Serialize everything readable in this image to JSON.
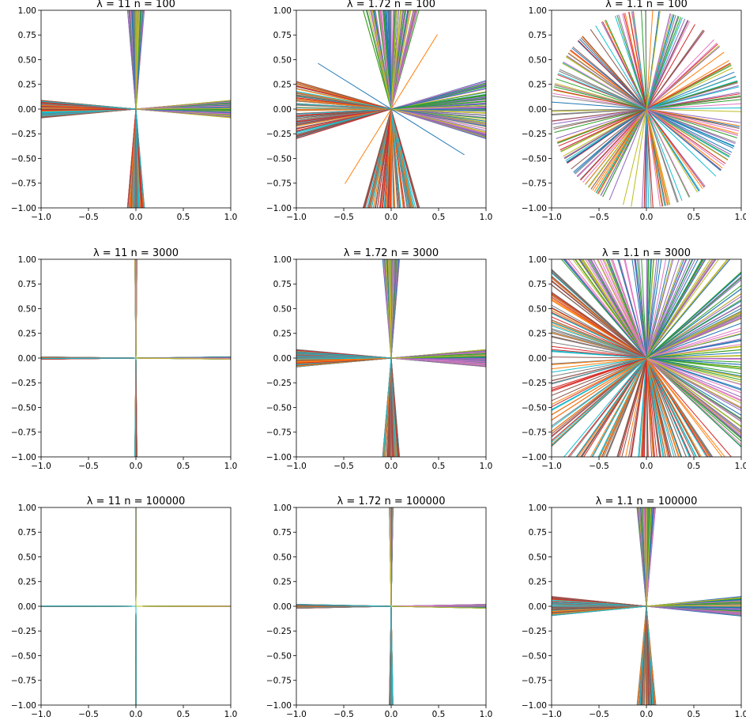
{
  "figure": {
    "color_cycle": [
      "#1f77b4",
      "#ff7f0e",
      "#2ca02c",
      "#d62728",
      "#9467bd",
      "#8c564b",
      "#e377c2",
      "#7f7f7f",
      "#bcbd22",
      "#17becf"
    ]
  },
  "chart_data": [
    {
      "type": "line",
      "title": "λ = 11   n = 100",
      "lambda": "11",
      "n": "100",
      "xlim": [
        -1.0,
        1.0
      ],
      "ylim": [
        -1.0,
        1.0
      ],
      "xticks": [
        "-1.0",
        "-0.5",
        "0.0",
        "0.5",
        "1.0"
      ],
      "yticks": [
        "1.00",
        "0.75",
        "0.50",
        "0.25",
        "0.00",
        "-0.25",
        "-0.50",
        "-0.75",
        "-1.00"
      ],
      "rays": [
        {
          "direction": "vertical",
          "count": 100,
          "max_tilt": 0.09
        },
        {
          "direction": "horizontal",
          "count": 100,
          "max_tilt": 0.09
        }
      ],
      "grid": false
    },
    {
      "type": "line",
      "title": "λ = 1.72   n = 100",
      "lambda": "1.72",
      "n": "100",
      "xlim": [
        -1.0,
        1.0
      ],
      "ylim": [
        -1.0,
        1.0
      ],
      "xticks": [
        "-1.0",
        "-0.5",
        "0.0",
        "0.5",
        "1.0"
      ],
      "yticks": [
        "1.00",
        "0.75",
        "0.50",
        "0.25",
        "0.00",
        "-0.25",
        "-0.50",
        "-0.75",
        "-1.00"
      ],
      "rays": [
        {
          "direction": "vertical",
          "count": 100,
          "max_tilt": 0.3
        },
        {
          "direction": "horizontal",
          "count": 100,
          "max_tilt": 0.3
        },
        {
          "direction": "free",
          "slopes": [
            -0.6,
            1.55
          ]
        }
      ],
      "grid": false
    },
    {
      "type": "line",
      "title": "λ = 1.1   n = 100",
      "lambda": "1.1",
      "n": "100",
      "xlim": [
        -1.0,
        1.0
      ],
      "ylim": [
        -1.0,
        1.0
      ],
      "xticks": [
        "-1.0",
        "-0.5",
        "0.0",
        "0.5",
        "1.0"
      ],
      "yticks": [
        "1.00",
        "0.75",
        "0.50",
        "0.25",
        "0.00",
        "-0.25",
        "-0.50",
        "-0.75",
        "-1.00"
      ],
      "rays": [
        {
          "direction": "all",
          "count": 220
        }
      ],
      "grid": false
    },
    {
      "type": "line",
      "title": "λ = 11   n = 3000",
      "lambda": "11",
      "n": "3000",
      "xlim": [
        -1.0,
        1.0
      ],
      "ylim": [
        -1.0,
        1.0
      ],
      "xticks": [
        "-1.0",
        "-0.5",
        "0.0",
        "0.5",
        "1.0"
      ],
      "yticks": [
        "1.00",
        "0.75",
        "0.50",
        "0.25",
        "0.00",
        "-0.25",
        "-0.50",
        "-0.75",
        "-1.00"
      ],
      "rays": [
        {
          "direction": "vertical",
          "count": 100,
          "max_tilt": 0.012
        },
        {
          "direction": "horizontal",
          "count": 100,
          "max_tilt": 0.012
        }
      ],
      "grid": false
    },
    {
      "type": "line",
      "title": "λ = 1.72   n = 3000",
      "lambda": "1.72",
      "n": "3000",
      "xlim": [
        -1.0,
        1.0
      ],
      "ylim": [
        -1.0,
        1.0
      ],
      "xticks": [
        "-1.0",
        "-0.5",
        "0.0",
        "0.5",
        "1.0"
      ],
      "yticks": [
        "1.00",
        "0.75",
        "0.50",
        "0.25",
        "0.00",
        "-0.25",
        "-0.50",
        "-0.75",
        "-1.00"
      ],
      "rays": [
        {
          "direction": "vertical",
          "count": 100,
          "max_tilt": 0.09
        },
        {
          "direction": "horizontal",
          "count": 100,
          "max_tilt": 0.09
        }
      ],
      "grid": false
    },
    {
      "type": "line",
      "title": "λ = 1.1   n = 3000",
      "lambda": "1.1",
      "n": "3000",
      "xlim": [
        -1.0,
        1.0
      ],
      "ylim": [
        -1.0,
        1.0
      ],
      "xticks": [
        "-1.0",
        "-0.5",
        "0.0",
        "0.5",
        "1.0"
      ],
      "yticks": [
        "1.00",
        "0.75",
        "0.50",
        "0.25",
        "0.00",
        "-0.25",
        "-0.50",
        "-0.75",
        "-1.00"
      ],
      "rays": [
        {
          "direction": "vertical",
          "count": 100,
          "max_tilt": 0.9
        },
        {
          "direction": "horizontal",
          "count": 100,
          "max_tilt": 0.9
        }
      ],
      "grid": false
    },
    {
      "type": "line",
      "title": "λ = 11   n = 100000",
      "lambda": "11",
      "n": "100000",
      "xlim": [
        -1.0,
        1.0
      ],
      "ylim": [
        -1.0,
        1.0
      ],
      "xticks": [
        "-1.0",
        "-0.5",
        "0.0",
        "0.5",
        "1.0"
      ],
      "yticks": [
        "1.00",
        "0.75",
        "0.50",
        "0.25",
        "0.00",
        "-0.25",
        "-0.50",
        "-0.75",
        "-1.00"
      ],
      "rays": [
        {
          "direction": "vertical",
          "count": 100,
          "max_tilt": 0.002
        },
        {
          "direction": "horizontal",
          "count": 100,
          "max_tilt": 0.002
        }
      ],
      "grid": false
    },
    {
      "type": "line",
      "title": "λ = 1.72   n = 100000",
      "lambda": "1.72",
      "n": "100000",
      "xlim": [
        -1.0,
        1.0
      ],
      "ylim": [
        -1.0,
        1.0
      ],
      "xticks": [
        "-1.0",
        "-0.5",
        "0.0",
        "0.5",
        "1.0"
      ],
      "yticks": [
        "1.00",
        "0.75",
        "0.50",
        "0.25",
        "0.00",
        "-0.25",
        "-0.50",
        "-0.75",
        "-1.00"
      ],
      "rays": [
        {
          "direction": "vertical",
          "count": 100,
          "max_tilt": 0.02
        },
        {
          "direction": "horizontal",
          "count": 100,
          "max_tilt": 0.02
        }
      ],
      "grid": false
    },
    {
      "type": "line",
      "title": "λ = 1.1   n = 100000",
      "lambda": "1.1",
      "n": "100000",
      "xlim": [
        -1.0,
        1.0
      ],
      "ylim": [
        -1.0,
        1.0
      ],
      "xticks": [
        "-1.0",
        "-0.5",
        "0.0",
        "0.5",
        "1.0"
      ],
      "yticks": [
        "1.00",
        "0.75",
        "0.50",
        "0.25",
        "0.00",
        "-0.25",
        "-0.50",
        "-0.75",
        "-1.00"
      ],
      "rays": [
        {
          "direction": "vertical",
          "count": 100,
          "max_tilt": 0.1
        },
        {
          "direction": "horizontal",
          "count": 100,
          "max_tilt": 0.1
        }
      ],
      "grid": false
    }
  ]
}
